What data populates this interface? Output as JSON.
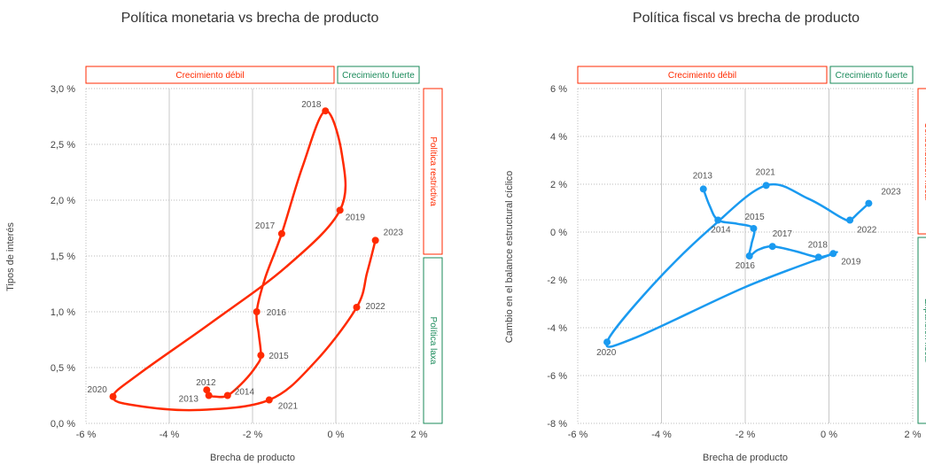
{
  "colors": {
    "red": "#ff2a00",
    "blue": "#1a9af0",
    "green": "#1a8a5a",
    "grid": "#c8c8c8",
    "dotted": "#bbbbbb"
  },
  "chart_data": [
    {
      "type": "line",
      "title": "Política monetaria vs brecha de producto",
      "xlabel": "Brecha de producto",
      "ylabel": "Tipos de interés",
      "xlim": [
        -6,
        2
      ],
      "ylim": [
        0,
        3
      ],
      "x_ticks": [
        "-6 %",
        "-4 %",
        "-2 %",
        "0 %",
        "2 %"
      ],
      "y_ticks": [
        "0,0 %",
        "0,5 %",
        "1,0 %",
        "1,5 %",
        "2,0 %",
        "2,5 %",
        "3,0 %"
      ],
      "top_bands": [
        "Crecimiento débil",
        "Crecimiento fuerte"
      ],
      "side_bands": [
        "Política restrictiva",
        "Política laxa"
      ],
      "color": "#ff2a00",
      "series": [
        {
          "points": [
            {
              "label": "2012",
              "x": -3.1,
              "y": 0.3
            },
            {
              "label": "2013",
              "x": -3.05,
              "y": 0.25
            },
            {
              "label": "2014",
              "x": -2.6,
              "y": 0.25
            },
            {
              "label": "2015",
              "x": -1.8,
              "y": 0.61
            },
            {
              "label": "2016",
              "x": -1.9,
              "y": 1.0
            },
            {
              "label": "2017",
              "x": -1.3,
              "y": 1.7
            },
            {
              "label": "2018",
              "x": -0.25,
              "y": 2.8
            },
            {
              "label": "2019",
              "x": 0.1,
              "y": 1.91
            },
            {
              "label": "2020",
              "x": -5.35,
              "y": 0.24
            },
            {
              "label": "2021",
              "x": -1.6,
              "y": 0.21
            },
            {
              "label": "2022",
              "x": 0.5,
              "y": 1.04
            },
            {
              "label": "2023",
              "x": 0.95,
              "y": 1.64
            }
          ]
        }
      ]
    },
    {
      "type": "line",
      "title": "Política fiscal vs brecha de producto",
      "xlabel": "Brecha de producto",
      "ylabel": "Cambio en el balance estructural cíclico",
      "xlim": [
        -6,
        2
      ],
      "ylim": [
        -8,
        6
      ],
      "x_ticks": [
        "-6 %",
        "-4 %",
        "-2 %",
        "0 %",
        "2 %"
      ],
      "y_ticks": [
        "-8 %",
        "-6 %",
        "-4 %",
        "-2 %",
        "0 %",
        "2 %",
        "4 %",
        "6 %"
      ],
      "top_bands": [
        "Crecimiento débil",
        "Crecimiento fuerte"
      ],
      "side_bands": [
        "Consolidación fiscal",
        "Expansión fiscal"
      ],
      "color": "#1a9af0",
      "series": [
        {
          "points": [
            {
              "label": "2013",
              "x": -3.0,
              "y": 1.8
            },
            {
              "label": "2014",
              "x": -2.65,
              "y": 0.5
            },
            {
              "label": "2015",
              "x": -1.8,
              "y": 0.15
            },
            {
              "label": "2016",
              "x": -1.9,
              "y": -1.0
            },
            {
              "label": "2017",
              "x": -1.35,
              "y": -0.6
            },
            {
              "label": "2018",
              "x": -0.25,
              "y": -1.05
            },
            {
              "label": "2019",
              "x": 0.1,
              "y": -0.9
            },
            {
              "label": "2020",
              "x": -5.3,
              "y": -4.6
            },
            {
              "label": "2021",
              "x": -1.5,
              "y": 1.95
            },
            {
              "label": "2022",
              "x": 0.5,
              "y": 0.5
            },
            {
              "label": "2023",
              "x": 0.95,
              "y": 1.2
            }
          ]
        }
      ]
    }
  ]
}
